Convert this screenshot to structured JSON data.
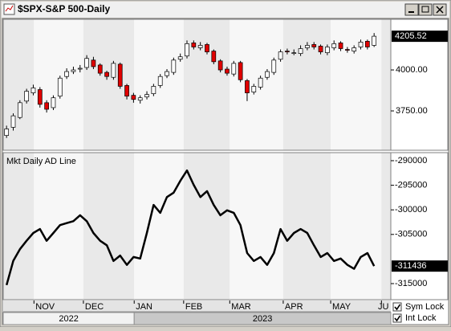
{
  "window_title": "$SPX-S&P 500-Daily",
  "x_axis": {
    "xlim": [
      -0.5,
      57.5
    ],
    "xticks": [
      {
        "value": 4.1,
        "label": "NOV"
      },
      {
        "value": 11.5,
        "label": "DEC"
      },
      {
        "value": 19.1,
        "label": "JAN"
      },
      {
        "value": 26.5,
        "label": "FEB"
      },
      {
        "value": 33.4,
        "label": "MAR"
      },
      {
        "value": 41.4,
        "label": "APR"
      },
      {
        "value": 48.5,
        "label": "MAY"
      },
      {
        "value": 56.1,
        "label": "JU"
      }
    ],
    "years": [
      {
        "value": -0.5,
        "label": "2022"
      },
      {
        "value": 19.1,
        "label": "2023"
      }
    ]
  },
  "chart_data": [
    {
      "type": "candlestick",
      "open": [
        3600,
        3650,
        3710,
        3810,
        3860,
        3880,
        3800,
        3770,
        3840,
        3960,
        3990,
        4005,
        4015,
        4060,
        4030,
        3985,
        3955,
        4035,
        3905,
        3845,
        3815,
        3835,
        3855,
        3905,
        3965,
        3985,
        4065,
        4085,
        4165,
        4135,
        4155,
        4115,
        4055,
        4005,
        3975,
        4045,
        3935,
        3865,
        3895,
        3955,
        3985,
        4065,
        4115,
        4105,
        4100,
        4135,
        4155,
        4145,
        4105,
        4135,
        4165,
        4125,
        4115,
        4140,
        4175,
        4150
      ],
      "high": [
        3660,
        3735,
        3815,
        3885,
        3910,
        3895,
        3815,
        3845,
        3965,
        4010,
        4020,
        4030,
        4090,
        4080,
        4040,
        3995,
        4055,
        4045,
        3915,
        3860,
        3845,
        3870,
        3915,
        3975,
        4005,
        4075,
        4100,
        4180,
        4180,
        4170,
        4165,
        4125,
        4065,
        4020,
        4055,
        4055,
        3945,
        3915,
        3965,
        4005,
        4075,
        4125,
        4130,
        4125,
        4150,
        4170,
        4170,
        4155,
        4155,
        4180,
        4175,
        4140,
        4150,
        4185,
        4185,
        4225
      ],
      "low": [
        3585,
        3630,
        3700,
        3795,
        3845,
        3770,
        3740,
        3755,
        3825,
        3945,
        3975,
        3985,
        4000,
        4005,
        3965,
        3940,
        3940,
        3885,
        3820,
        3800,
        3795,
        3820,
        3840,
        3890,
        3950,
        3970,
        4050,
        4070,
        4125,
        4120,
        4095,
        4035,
        3985,
        3965,
        3960,
        3925,
        3810,
        3850,
        3880,
        3940,
        3970,
        4050,
        4095,
        4090,
        4085,
        4120,
        4125,
        4095,
        4090,
        4120,
        4115,
        4105,
        4100,
        4125,
        4125,
        4140
      ],
      "close": [
        3640,
        3720,
        3800,
        3870,
        3890,
        3790,
        3760,
        3830,
        3950,
        3990,
        4000,
        4010,
        4070,
        4020,
        3980,
        3960,
        4040,
        3900,
        3840,
        3820,
        3830,
        3850,
        3900,
        3960,
        3990,
        4060,
        4080,
        4160,
        4140,
        4150,
        4110,
        4050,
        4000,
        3980,
        4040,
        3940,
        3860,
        3900,
        3950,
        3990,
        4060,
        4110,
        4110,
        4105,
        4130,
        4150,
        4140,
        4110,
        4140,
        4160,
        4130,
        4120,
        4135,
        4170,
        4140,
        4205.52
      ],
      "up_color": "#ffffff",
      "down_color": "#e00000",
      "ylim": [
        3510,
        4309
      ],
      "yticks": [
        {
          "value": 3750,
          "label": "3750.00"
        },
        {
          "value": 4000,
          "label": "4000.00"
        }
      ]
    },
    {
      "type": "line",
      "title": "Mkt Daily AD Line",
      "series": [
        {
          "color": "#000000",
          "values": [
            -315300,
            -310400,
            -308000,
            -306300,
            -304700,
            -303900,
            -306300,
            -304700,
            -303100,
            -302700,
            -302300,
            -301100,
            -302300,
            -304700,
            -306300,
            -307200,
            -310400,
            -309300,
            -311200,
            -309600,
            -309900,
            -304700,
            -299000,
            -300600,
            -297400,
            -296500,
            -294100,
            -292000,
            -294900,
            -297400,
            -296200,
            -299000,
            -301100,
            -300100,
            -300600,
            -303100,
            -308800,
            -310400,
            -309600,
            -311200,
            -308800,
            -303900,
            -306300,
            -304700,
            -303900,
            -304700,
            -307200,
            -309600,
            -308800,
            -310400,
            -309900,
            -311200,
            -312000,
            -309600,
            -308800,
            -311436
          ]
        }
      ],
      "ylim": [
        -318270,
        -288366
      ],
      "yticks": [
        -290000,
        -295000,
        -300000,
        -305000,
        -315000
      ]
    }
  ],
  "controls": {
    "checkboxes": [
      {
        "label": "Sym Lock",
        "checked": true
      },
      {
        "label": "Int Lock",
        "checked": true
      }
    ]
  }
}
